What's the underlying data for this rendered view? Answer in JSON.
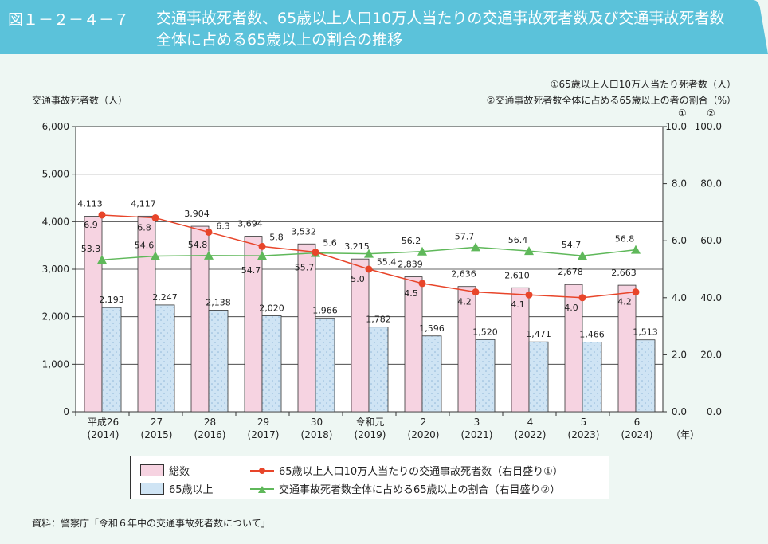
{
  "header": {
    "figure_no": "図１－２－４－７",
    "title": "交通事故死者数、65歳以上人口10万人当たりの交通事故死者数及び交通事故死者数全体に占める65歳以上の割合の推移"
  },
  "colors": {
    "header": "#5bc2da",
    "total_bar": "#f6d3e1",
    "elderly_bar": "#cfe4f4",
    "rate_line": "#e8452a",
    "ratio_line": "#5fb85a"
  },
  "chart_data": {
    "type": "bar+line",
    "ylabel_left": "交通事故死者数（人）",
    "ylabel_right_1": "①65歳以上人口10万人当たり死者数（人）",
    "ylabel_right_2": "②交通事故死者数全体に占める65歳以上の者の割合（%）",
    "right_axis_marks": [
      "①",
      "②"
    ],
    "ylim_left": [
      0,
      6000
    ],
    "ylim_right_1": [
      0,
      10
    ],
    "ylim_right_2": [
      0,
      100
    ],
    "left_ticks": [
      "0",
      "1,000",
      "2,000",
      "3,000",
      "4,000",
      "5,000",
      "6,000"
    ],
    "right1_ticks": [
      "0.0",
      "2.0",
      "4.0",
      "6.0",
      "8.0",
      "10.0"
    ],
    "right2_ticks": [
      "0.0",
      "20.0",
      "40.0",
      "60.0",
      "80.0",
      "100.0"
    ],
    "grid": true,
    "categories": [
      [
        "平成26",
        "(2014)"
      ],
      [
        "27",
        "(2015)"
      ],
      [
        "28",
        "(2016)"
      ],
      [
        "29",
        "(2017)"
      ],
      [
        "30",
        "(2018)"
      ],
      [
        "令和元",
        "(2019)"
      ],
      [
        "2",
        "(2020)"
      ],
      [
        "3",
        "(2021)"
      ],
      [
        "4",
        "(2022)"
      ],
      [
        "5",
        "(2023)"
      ],
      [
        "6",
        "(2024)"
      ]
    ],
    "x_unit": "（年）",
    "series": [
      {
        "name": "総数",
        "type": "bar",
        "axis": "left",
        "values": [
          4113,
          4117,
          3904,
          3694,
          3532,
          3215,
          2839,
          2636,
          2610,
          2678,
          2663
        ],
        "labels": [
          "4,113",
          "4,117",
          "3,904",
          "3,694",
          "3,532",
          "3,215",
          "2,839",
          "2,636",
          "2,610",
          "2,678",
          "2,663"
        ]
      },
      {
        "name": "65歳以上",
        "type": "bar",
        "axis": "left",
        "values": [
          2193,
          2247,
          2138,
          2020,
          1966,
          1782,
          1596,
          1520,
          1471,
          1466,
          1513
        ],
        "labels": [
          "2,193",
          "2,247",
          "2,138",
          "2,020",
          "1,966",
          "1,782",
          "1,596",
          "1,520",
          "1,471",
          "1,466",
          "1,513"
        ]
      },
      {
        "name": "65歳以上人口10万人当たりの交通事故死者数（右目盛り①）",
        "type": "line",
        "axis": "right1",
        "values": [
          6.9,
          6.8,
          6.3,
          5.8,
          5.6,
          5.0,
          4.5,
          4.2,
          4.1,
          4.0,
          4.2
        ]
      },
      {
        "name": "交通事故死者数全体に占める65歳以上の割合（右目盛り②）",
        "type": "line",
        "axis": "right2",
        "values": [
          53.3,
          54.6,
          54.8,
          54.7,
          55.7,
          55.4,
          56.2,
          57.7,
          56.4,
          54.7,
          56.8
        ]
      }
    ],
    "legend_placement": "bottom"
  },
  "source": "資料：警察庁「令和６年中の交通事故死者数について」"
}
